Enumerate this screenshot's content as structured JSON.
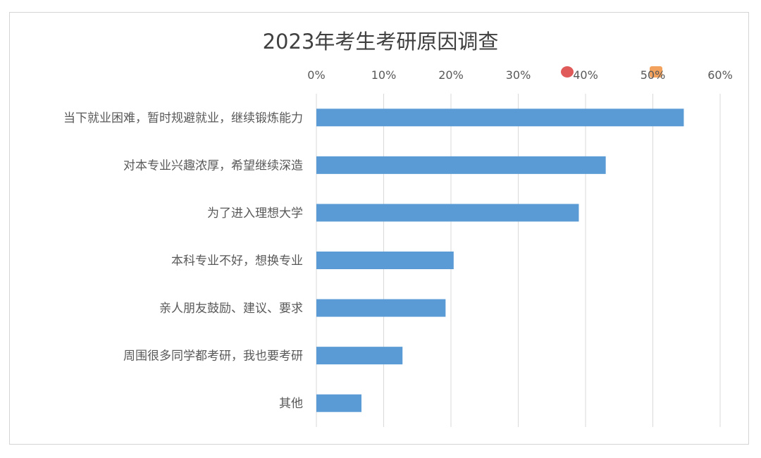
{
  "chart_data": {
    "type": "bar",
    "orientation": "horizontal",
    "title": "2023年考生考研原因调查",
    "categories": [
      "当下就业困难，暂时规避就业，继续锻炼能力",
      "对本专业兴趣浓厚，希望继续深造",
      "为了进入理想大学",
      "本科专业不好，想换专业",
      "亲人朋友鼓励、建议、要求",
      "周围很多同学都考研，我也要考研",
      "其他"
    ],
    "values": [
      54.6,
      43.0,
      39.0,
      20.4,
      19.2,
      12.8,
      6.7
    ],
    "xlim": [
      0,
      60
    ],
    "xticks": [
      "0%",
      "10%",
      "20%",
      "30%",
      "40%",
      "50%",
      "60%"
    ],
    "x_axis_position": "top",
    "grid": true,
    "bar_color": "#5b9bd5"
  },
  "watermarks": {
    "left_color": "#e05a5a",
    "right_color": "#f2a25c"
  }
}
